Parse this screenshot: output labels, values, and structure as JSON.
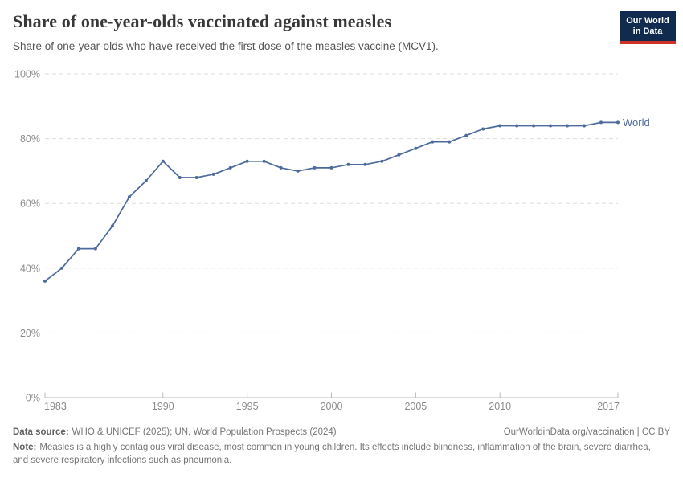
{
  "header": {
    "title": "Share of one-year-olds vaccinated against measles",
    "subtitle": "Share of one-year-olds who have received the first dose of the measles vaccine (MCV1).",
    "logo": {
      "line1": "Our World",
      "line2": "in Data",
      "bg_color": "#112B4E",
      "accent_color": "#CE322A"
    }
  },
  "chart_data": {
    "type": "line",
    "title": "Share of one-year-olds vaccinated against measles",
    "xlabel": "",
    "ylabel": "",
    "xlim": [
      1983,
      2017
    ],
    "ylim": [
      0,
      100
    ],
    "x_ticks": [
      1983,
      1990,
      1995,
      2000,
      2005,
      2010,
      2017
    ],
    "y_ticks": [
      0,
      20,
      40,
      60,
      80,
      100
    ],
    "y_tick_suffix": "%",
    "grid": "horizontal-dashed",
    "legend_position": "end-of-line-label",
    "line_color": "#4C6A9C",
    "grid_color": "#dddddd",
    "axis_color": "#b8b8b8",
    "tick_label_color": "#8b8b8b",
    "series": [
      {
        "name": "World",
        "color": "#4C6A9C",
        "x": [
          1983,
          1984,
          1985,
          1986,
          1987,
          1988,
          1989,
          1990,
          1991,
          1992,
          1993,
          1994,
          1995,
          1996,
          1997,
          1998,
          1999,
          2000,
          2001,
          2002,
          2003,
          2004,
          2005,
          2006,
          2007,
          2008,
          2009,
          2010,
          2011,
          2012,
          2013,
          2014,
          2015,
          2016,
          2017
        ],
        "values": [
          36,
          40,
          46,
          46,
          53,
          62,
          67,
          73,
          68,
          68,
          69,
          71,
          73,
          73,
          71,
          70,
          71,
          71,
          72,
          72,
          73,
          75,
          77,
          79,
          79,
          81,
          83,
          84,
          84,
          84,
          84,
          84,
          84,
          85,
          85
        ]
      }
    ]
  },
  "footer": {
    "datasource_label": "Data source:",
    "datasource_text": "WHO & UNICEF (2025); UN, World Population Prospects (2024)",
    "credit": "OurWorldinData.org/vaccination | CC BY",
    "note_label": "Note:",
    "note_text": "Measles is a highly contagious viral disease, most common in young children. Its effects include blindness, inflammation of the brain, severe diarrhea, and severe respiratory infections such as pneumonia."
  }
}
